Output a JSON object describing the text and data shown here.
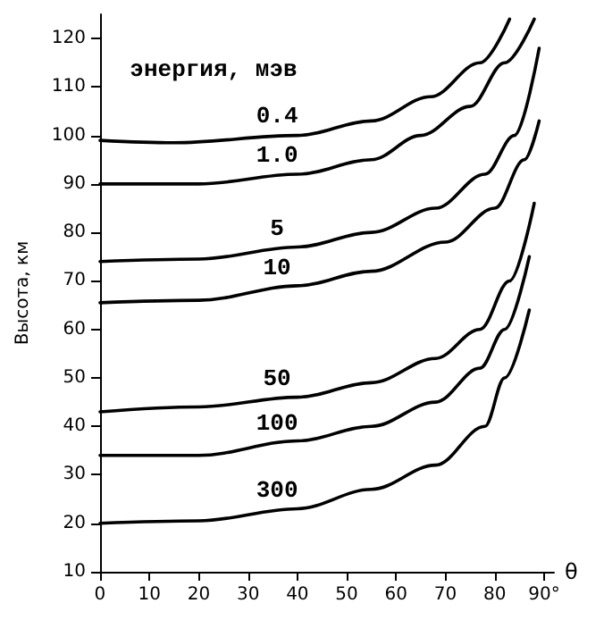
{
  "chart_data": {
    "type": "line",
    "xlabel": "θ",
    "ylabel": "Высота, км",
    "legend_title": "энергия, мэв",
    "xlim": [
      0,
      92
    ],
    "xticks": [
      0,
      10,
      20,
      30,
      40,
      50,
      60,
      70,
      80,
      {
        "value": 90,
        "label": "90°"
      }
    ],
    "ylim": [
      10,
      125
    ],
    "yticks": [
      10,
      20,
      30,
      40,
      50,
      60,
      70,
      80,
      90,
      100,
      110,
      120
    ],
    "grid": false,
    "legend": false,
    "marker": "none",
    "line_style": "solid",
    "series": [
      {
        "name": "0.4",
        "color": "#000000",
        "x": [
          0,
          15,
          40,
          55,
          67,
          77,
          83
        ],
        "values": [
          99,
          98.5,
          100,
          103,
          108,
          115,
          124
        ]
      },
      {
        "name": "1.0",
        "color": "#000000",
        "x": [
          0,
          20,
          40,
          55,
          65,
          75,
          82,
          88
        ],
        "values": [
          90,
          90,
          92,
          95,
          100,
          106,
          115,
          124
        ]
      },
      {
        "name": "5",
        "color": "#000000",
        "x": [
          0,
          20,
          40,
          55,
          68,
          78,
          84,
          89
        ],
        "values": [
          74,
          74.5,
          77,
          80,
          85,
          92,
          100,
          118
        ]
      },
      {
        "name": "10",
        "color": "#000000",
        "x": [
          0,
          20,
          40,
          55,
          70,
          80,
          86,
          89
        ],
        "values": [
          65.5,
          66,
          69,
          72,
          78,
          85,
          95,
          103
        ]
      },
      {
        "name": "50",
        "color": "#000000",
        "x": [
          0,
          20,
          40,
          55,
          68,
          77,
          83,
          88
        ],
        "values": [
          43,
          44,
          46,
          49,
          54,
          60,
          70,
          86
        ]
      },
      {
        "name": "100",
        "color": "#000000",
        "x": [
          0,
          20,
          40,
          55,
          68,
          77,
          82,
          87
        ],
        "values": [
          34,
          34,
          37,
          40,
          45,
          52,
          60,
          75
        ]
      },
      {
        "name": "300",
        "color": "#000000",
        "x": [
          0,
          20,
          40,
          55,
          68,
          78,
          82,
          87
        ],
        "values": [
          20,
          20.5,
          23,
          27,
          32,
          40,
          50,
          64
        ]
      }
    ]
  }
}
